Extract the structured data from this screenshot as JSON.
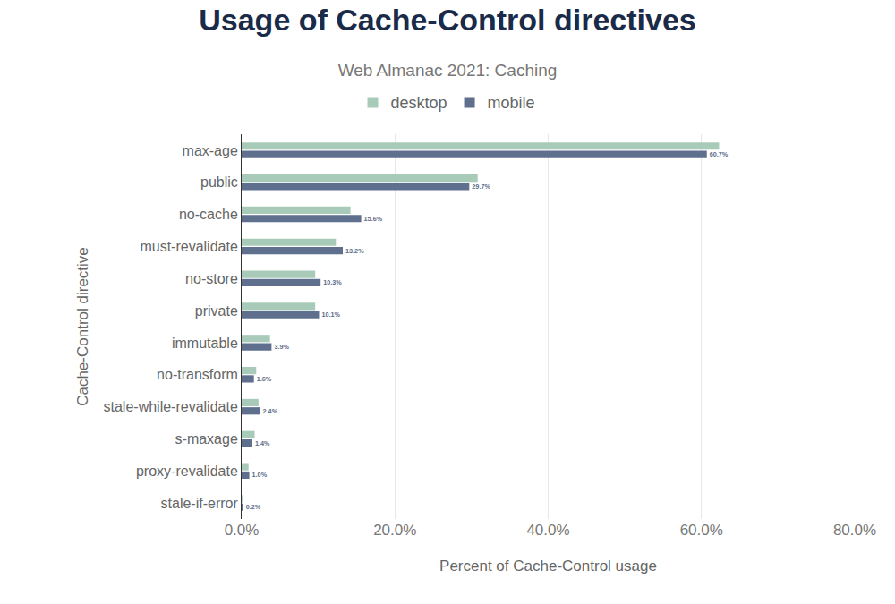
{
  "chart_data": {
    "type": "bar",
    "title": "Usage of Cache-Control directives",
    "subtitle": "Web Almanac 2021: Caching",
    "x_label": "Percent of Cache-Control usage",
    "y_label": "Cache-Control directive",
    "orientation": "horizontal",
    "categories": [
      "max-age",
      "public",
      "no-cache",
      "must-revalidate",
      "no-store",
      "private",
      "immutable",
      "no-transform",
      "stale-while-revalidate",
      "s-maxage",
      "proxy-revalidate",
      "stale-if-error"
    ],
    "series": [
      {
        "name": "desktop",
        "color": "#a8cbb9",
        "values": [
          62.3,
          30.8,
          14.2,
          12.3,
          9.6,
          9.6,
          3.7,
          1.9,
          2.2,
          1.7,
          0.9,
          0.1
        ]
      },
      {
        "name": "mobile",
        "color": "#5f6f8e",
        "values": [
          60.7,
          29.7,
          15.6,
          13.2,
          10.3,
          10.1,
          3.9,
          1.6,
          2.4,
          1.4,
          1.0,
          0.2
        ],
        "value_labels": [
          "60.7%",
          "29.7%",
          "15.6%",
          "13.2%",
          "10.3%",
          "10.1%",
          "3.9%",
          "1.6%",
          "2.4%",
          "1.4%",
          "1.0%",
          "0.2%"
        ]
      }
    ],
    "xlim": [
      0,
      80
    ],
    "xticks": [
      {
        "value": 0,
        "label": "0.0%"
      },
      {
        "value": 20,
        "label": "20.0%"
      },
      {
        "value": 40,
        "label": "40.0%"
      },
      {
        "value": 60,
        "label": "60.0%"
      },
      {
        "value": 80,
        "label": "80.0%"
      }
    ],
    "grid": true,
    "legend": "top",
    "data_labels": true
  }
}
